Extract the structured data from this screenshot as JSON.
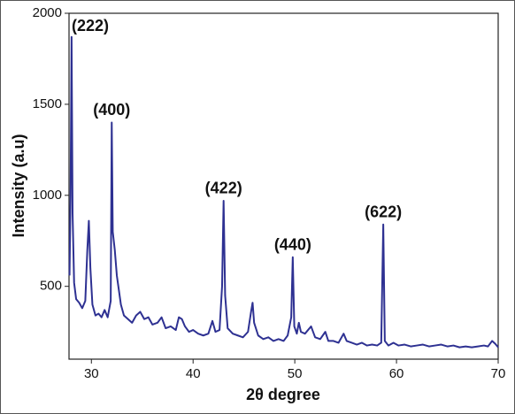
{
  "chart_data": {
    "type": "line",
    "xlabel": "2θ degree",
    "ylabel": "Intensity (a.u)",
    "color": "#2e3192",
    "xlim": [
      27.8,
      70
    ],
    "xticks": [
      30,
      40,
      50,
      60,
      70
    ],
    "ylim": [
      100,
      2000
    ],
    "yticks": [
      500,
      1000,
      1500,
      2000
    ],
    "x": [
      27.85,
      27.95,
      28.05,
      28.15,
      28.3,
      28.5,
      28.8,
      29.1,
      29.4,
      29.6,
      29.75,
      29.9,
      30.1,
      30.4,
      30.7,
      31.0,
      31.3,
      31.6,
      31.9,
      32.0,
      32.1,
      32.3,
      32.5,
      32.7,
      32.9,
      33.2,
      33.6,
      34.0,
      34.4,
      34.8,
      35.2,
      35.6,
      36.0,
      36.5,
      36.9,
      37.3,
      37.8,
      38.3,
      38.6,
      38.9,
      39.2,
      39.6,
      40.0,
      40.5,
      41.0,
      41.5,
      41.9,
      42.2,
      42.6,
      42.85,
      43.0,
      43.15,
      43.4,
      43.9,
      44.4,
      44.9,
      45.4,
      45.7,
      45.85,
      46.0,
      46.4,
      46.9,
      47.4,
      47.9,
      48.4,
      48.9,
      49.3,
      49.65,
      49.8,
      49.95,
      50.2,
      50.4,
      50.6,
      51.0,
      51.6,
      52.0,
      52.5,
      53.0,
      53.3,
      53.8,
      54.3,
      54.8,
      55.1,
      55.6,
      56.1,
      56.6,
      57.1,
      57.6,
      58.1,
      58.5,
      58.7,
      58.85,
      59.2,
      59.7,
      60.2,
      60.8,
      61.4,
      62.0,
      62.6,
      63.2,
      63.8,
      64.4,
      65.0,
      65.6,
      66.2,
      66.8,
      67.4,
      68.0,
      68.6,
      69.0,
      69.4,
      69.7,
      70.0
    ],
    "values": [
      560,
      1000,
      1870,
      900,
      520,
      430,
      410,
      380,
      420,
      700,
      860,
      600,
      400,
      340,
      350,
      330,
      370,
      330,
      420,
      1400,
      800,
      700,
      560,
      480,
      400,
      340,
      320,
      300,
      340,
      360,
      320,
      330,
      290,
      300,
      330,
      270,
      280,
      260,
      330,
      320,
      280,
      250,
      260,
      240,
      230,
      240,
      310,
      250,
      260,
      500,
      970,
      450,
      270,
      240,
      230,
      220,
      250,
      360,
      410,
      300,
      230,
      210,
      220,
      200,
      210,
      200,
      230,
      330,
      660,
      280,
      240,
      300,
      250,
      240,
      280,
      220,
      210,
      250,
      200,
      200,
      190,
      240,
      200,
      190,
      180,
      190,
      175,
      180,
      175,
      190,
      840,
      200,
      175,
      190,
      175,
      180,
      170,
      175,
      180,
      170,
      175,
      180,
      170,
      175,
      165,
      170,
      165,
      170,
      175,
      170,
      200,
      185,
      165
    ],
    "annotations": [
      {
        "text": "(222)",
        "x": 28.05
      },
      {
        "text": "(400)",
        "x": 32.0
      },
      {
        "text": "(422)",
        "x": 43.0
      },
      {
        "text": "(440)",
        "x": 49.8
      },
      {
        "text": "(622)",
        "x": 58.7
      }
    ]
  }
}
